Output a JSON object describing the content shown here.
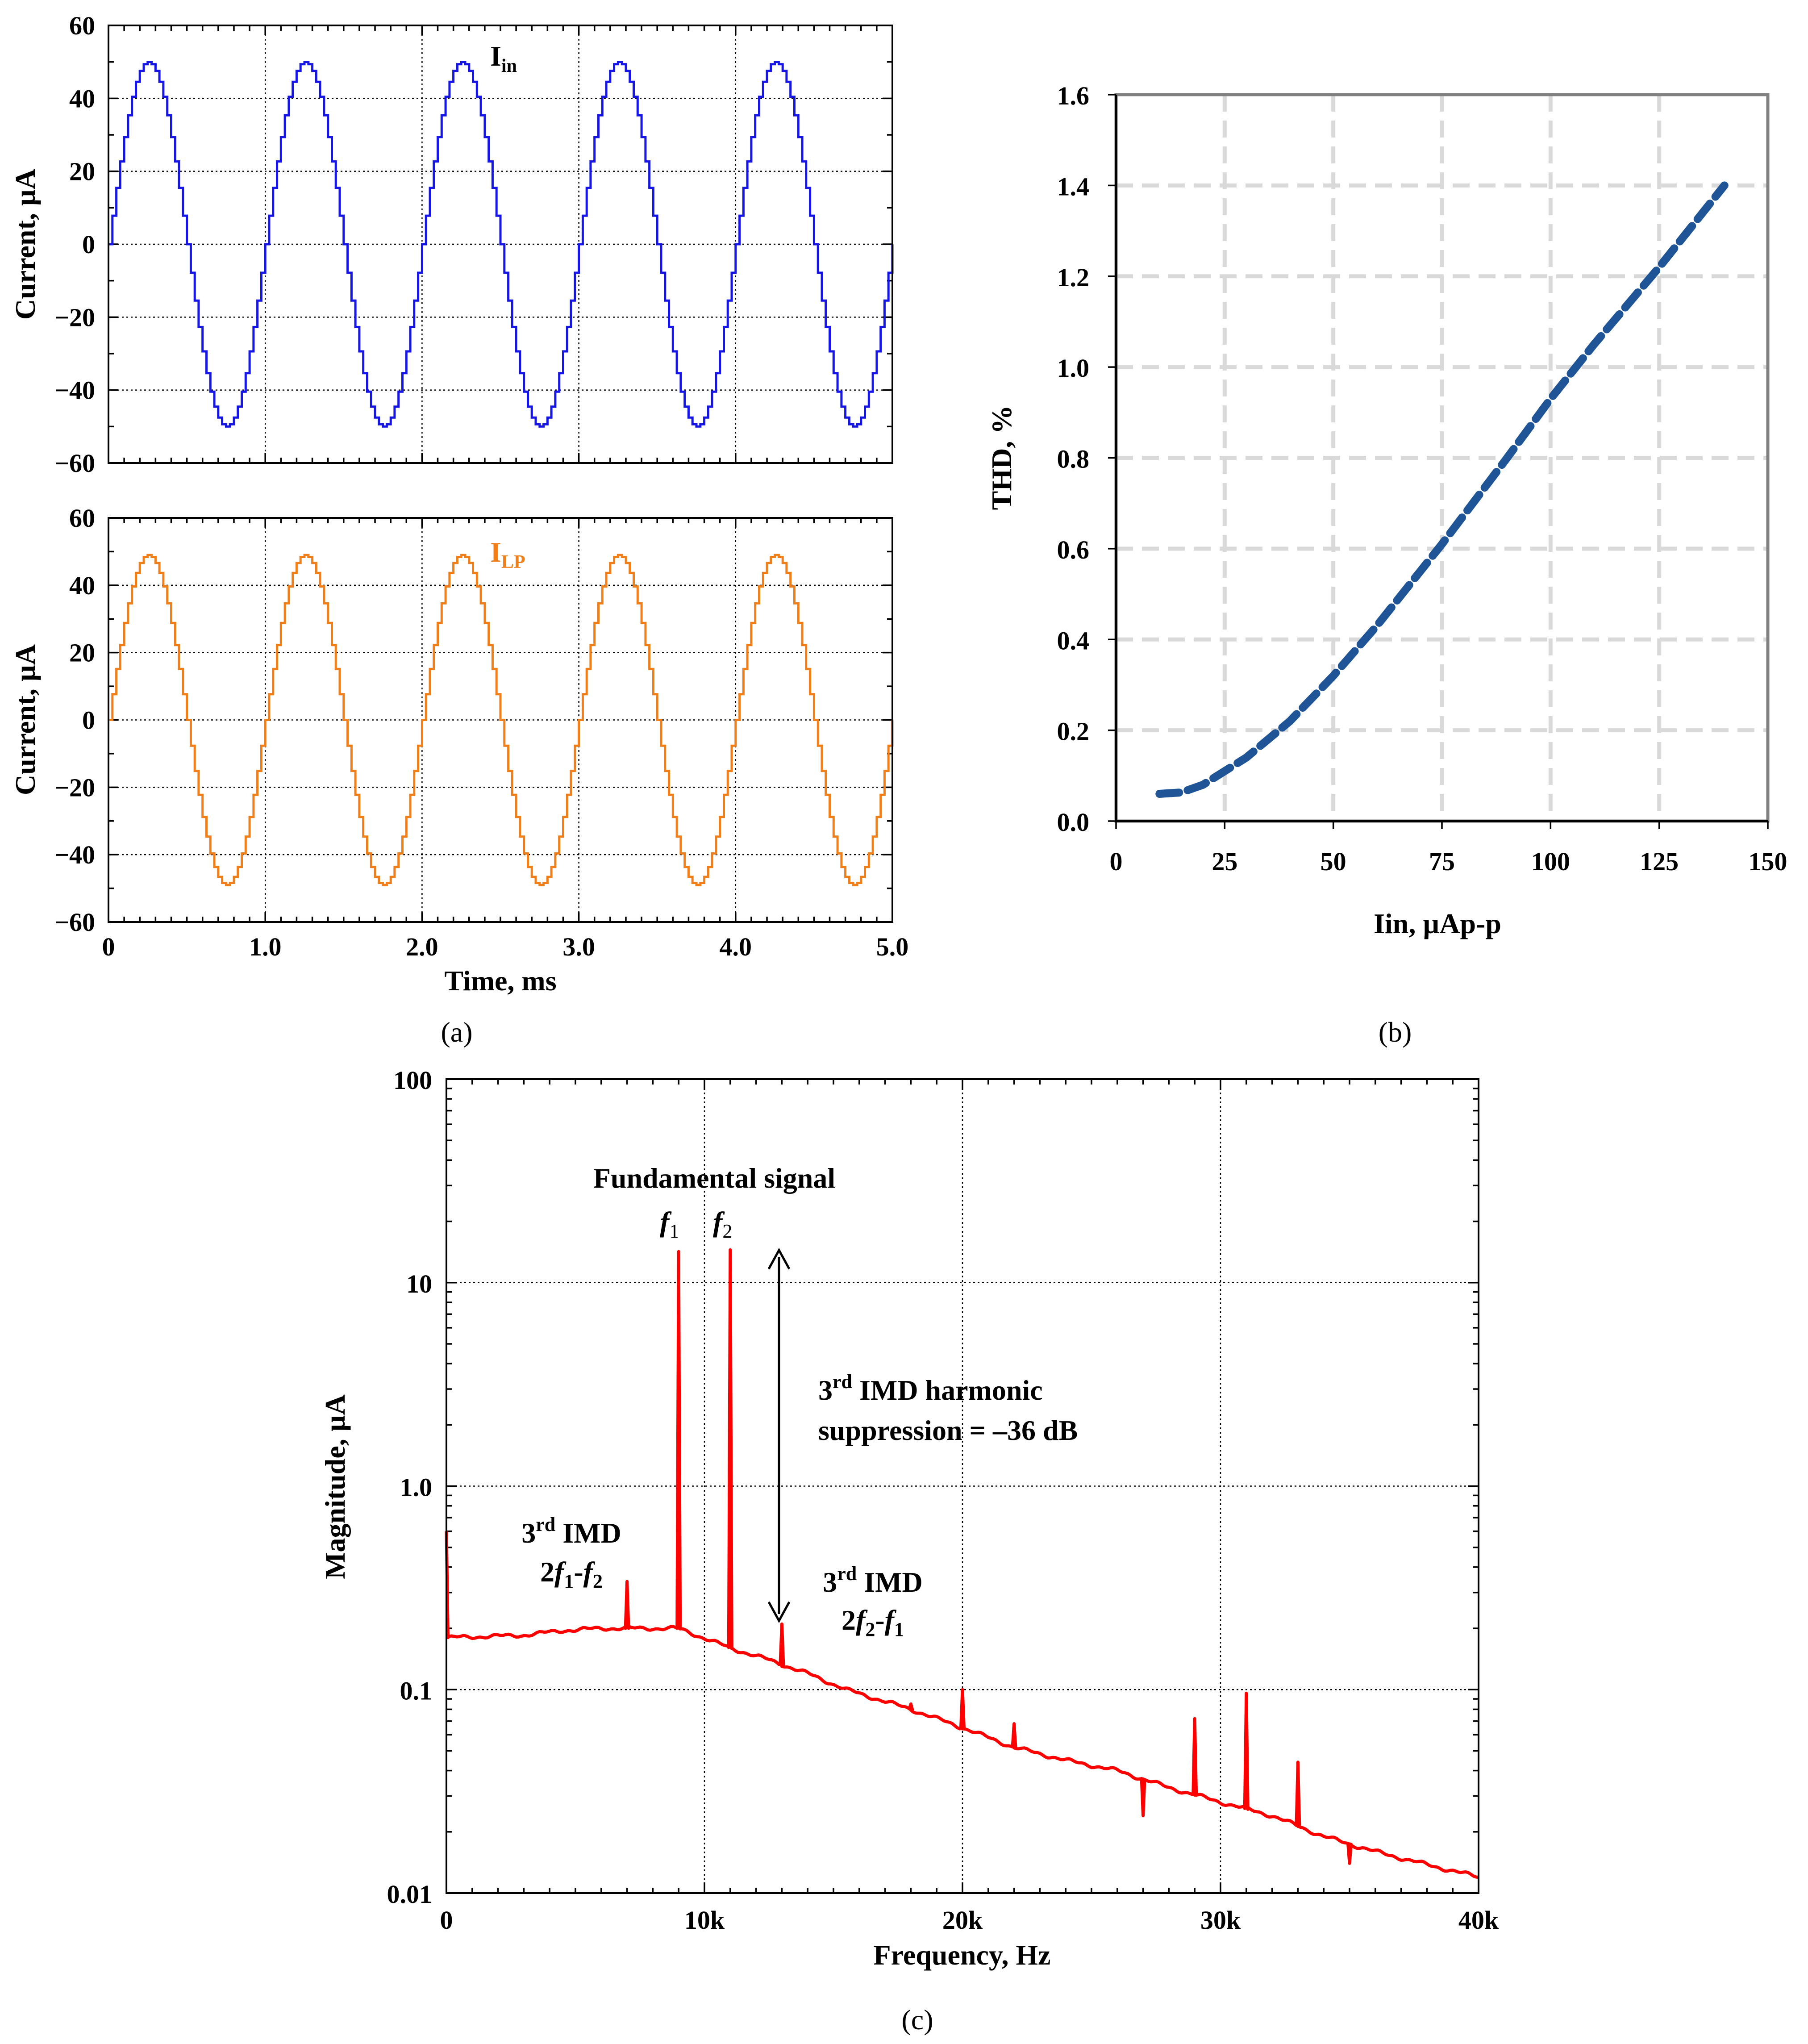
{
  "colors": {
    "iin": "#1515e6",
    "ilp": "#f07f1a",
    "thd": "#1f5597",
    "spectrum": "#ff0000",
    "grid_b": "#d9d9d9"
  },
  "chart_data": [
    {
      "id": "a1",
      "type": "line",
      "title": "",
      "series": [
        {
          "name": "Iin",
          "label": "I",
          "label_sub": "in",
          "amplitude": 50,
          "frequency_khz": 1.0,
          "t_range": [
            0,
            5.0
          ],
          "step_ms": 0.025
        }
      ],
      "xlabel": "",
      "ylabel": "Current, µA",
      "xlim": [
        0,
        5.0
      ],
      "ylim": [
        -60,
        60
      ],
      "y_ticks": [
        {
          "v": 60,
          "label": "60"
        },
        {
          "v": 40,
          "label": "40"
        },
        {
          "v": 20,
          "label": "20"
        },
        {
          "v": 0,
          "label": "0"
        },
        {
          "v": -20,
          "label": "−20"
        },
        {
          "v": -40,
          "label": "−40"
        },
        {
          "v": -60,
          "label": "−60"
        }
      ],
      "x_ticks": [
        0,
        1.0,
        2.0,
        3.0,
        4.0,
        5.0
      ],
      "grid": "dotted"
    },
    {
      "id": "a2",
      "type": "line",
      "title": "",
      "series": [
        {
          "name": "ILP",
          "label": "I",
          "label_sub": "LP",
          "amplitude": 49,
          "frequency_khz": 1.0,
          "t_range": [
            0,
            5.0
          ],
          "step_ms": 0.025
        }
      ],
      "xlabel": "Time, ms",
      "ylabel": "Current, µA",
      "xlim": [
        0,
        5.0
      ],
      "ylim": [
        -60,
        60
      ],
      "y_ticks": [
        {
          "v": 60,
          "label": "60"
        },
        {
          "v": 40,
          "label": "40"
        },
        {
          "v": 20,
          "label": "20"
        },
        {
          "v": 0,
          "label": "0"
        },
        {
          "v": -20,
          "label": "−20"
        },
        {
          "v": -40,
          "label": "−40"
        },
        {
          "v": -60,
          "label": "−60"
        }
      ],
      "x_ticks": [
        {
          "v": 0,
          "label": "0"
        },
        {
          "v": 1,
          "label": "1.0"
        },
        {
          "v": 2,
          "label": "2.0"
        },
        {
          "v": 3,
          "label": "3.0"
        },
        {
          "v": 4,
          "label": "4.0"
        },
        {
          "v": 5,
          "label": "5.0"
        }
      ],
      "grid": "dotted",
      "panel_label": "(a)"
    },
    {
      "id": "b",
      "type": "line",
      "title": "",
      "series": [
        {
          "name": "THD",
          "x": [
            10,
            15,
            20,
            25,
            30,
            40,
            50,
            60,
            75,
            90,
            100,
            110,
            125,
            140
          ],
          "y": [
            0.06,
            0.063,
            0.08,
            0.11,
            0.14,
            0.22,
            0.32,
            0.43,
            0.61,
            0.8,
            0.93,
            1.05,
            1.22,
            1.4
          ]
        }
      ],
      "xlabel": "Iin, µAp-p",
      "ylabel": "THD, %",
      "xlim": [
        0,
        150
      ],
      "ylim": [
        0,
        1.6
      ],
      "x_ticks": [
        {
          "v": 0,
          "label": "0"
        },
        {
          "v": 25,
          "label": "25"
        },
        {
          "v": 50,
          "label": "50"
        },
        {
          "v": 75,
          "label": "75"
        },
        {
          "v": 100,
          "label": "100"
        },
        {
          "v": 125,
          "label": "125"
        },
        {
          "v": 150,
          "label": "150"
        }
      ],
      "y_ticks": [
        {
          "v": 0,
          "label": "0.0"
        },
        {
          "v": 0.2,
          "label": "0.2"
        },
        {
          "v": 0.4,
          "label": "0.4"
        },
        {
          "v": 0.6,
          "label": "0.6"
        },
        {
          "v": 0.8,
          "label": "0.8"
        },
        {
          "v": 1.0,
          "label": "1.0"
        },
        {
          "v": 1.2,
          "label": "1.2"
        },
        {
          "v": 1.4,
          "label": "1.4"
        },
        {
          "v": 1.6,
          "label": "1.6"
        }
      ],
      "grid": "dashed",
      "panel_label": "(b)"
    },
    {
      "id": "c",
      "type": "line",
      "title": "",
      "series": [
        {
          "name": "Spectrum",
          "baseline": [
            [
              0,
              0.18
            ],
            [
              3000,
              0.185
            ],
            [
              4500,
              0.195
            ],
            [
              6000,
              0.2
            ],
            [
              9000,
              0.2
            ],
            [
              11000,
              0.16
            ],
            [
              12500,
              0.14
            ],
            [
              14000,
              0.12
            ],
            [
              15500,
              0.1
            ],
            [
              18000,
              0.08
            ],
            [
              20000,
              0.065
            ],
            [
              22000,
              0.052
            ],
            [
              24000,
              0.045
            ],
            [
              26000,
              0.04
            ],
            [
              28000,
              0.033
            ],
            [
              30000,
              0.028
            ],
            [
              32000,
              0.024
            ],
            [
              34000,
              0.019
            ],
            [
              36000,
              0.016
            ],
            [
              38000,
              0.0138
            ],
            [
              40000,
              0.012
            ]
          ],
          "peaks": [
            [
              0,
              0.6
            ],
            [
              7000,
              0.34
            ],
            [
              9000,
              14.2
            ],
            [
              11000,
              14.5
            ],
            [
              13000,
              0.21
            ],
            [
              18000,
              0.085
            ],
            [
              20000,
              0.1
            ],
            [
              22000,
              0.068
            ],
            [
              29000,
              0.072
            ],
            [
              31000,
              0.096
            ],
            [
              33000,
              0.044
            ]
          ],
          "dips": [
            [
              27000,
              0.024
            ],
            [
              35000,
              0.014
            ]
          ]
        }
      ],
      "xlabel": "Frequency, Hz",
      "ylabel": "Magnitude, µA",
      "xlim": [
        0,
        40000
      ],
      "ylim": [
        0.01,
        100
      ],
      "yscale": "log",
      "x_ticks": [
        {
          "v": 0,
          "label": "0"
        },
        {
          "v": 10000,
          "label": "10k"
        },
        {
          "v": 20000,
          "label": "20k"
        },
        {
          "v": 30000,
          "label": "30k"
        },
        {
          "v": 40000,
          "label": "40k"
        }
      ],
      "y_ticks": [
        {
          "v": 100,
          "label": "100"
        },
        {
          "v": 10,
          "label": "10"
        },
        {
          "v": 1,
          "label": "1.0"
        },
        {
          "v": 0.1,
          "label": "0.1"
        },
        {
          "v": 0.01,
          "label": "0.01"
        }
      ],
      "grid": "dotted",
      "panel_label": "(c)",
      "annotations": {
        "fundamental": "Fundamental signal",
        "f1": {
          "f": "f",
          "sub": "1"
        },
        "f2": {
          "f": "f",
          "sub": "2"
        },
        "imd_harmonic_1": {
          "pre": "3",
          "sup": "rd",
          "post": " IMD harmonic"
        },
        "suppression": "suppression = –36 dB",
        "imd_low": {
          "pre": "3",
          "sup": "rd",
          "post": " IMD",
          "line2": {
            "a": "2",
            "f1": "f",
            "s1": "1",
            "dash": "-",
            "f2": "f",
            "s2": "2"
          }
        },
        "imd_high": {
          "pre": "3",
          "sup": "rd",
          "post": " IMD",
          "line2": {
            "a": "2",
            "f1": "f",
            "s1": "2",
            "dash": "-",
            "f2": "f",
            "s2": "1"
          }
        }
      }
    }
  ]
}
